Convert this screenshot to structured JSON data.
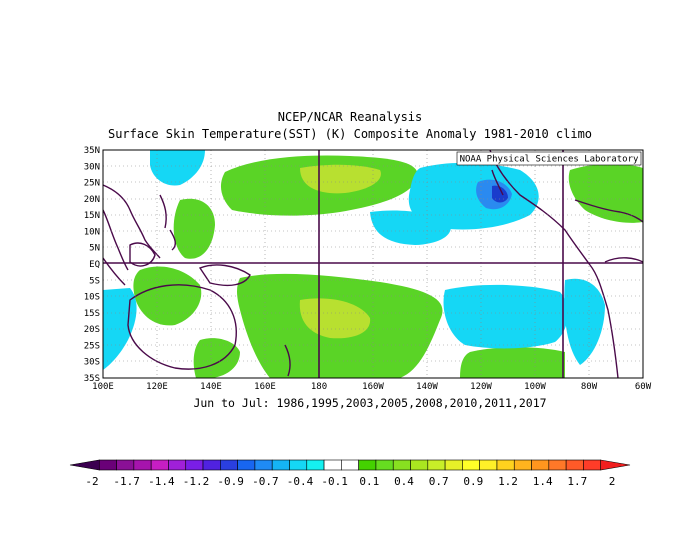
{
  "title_line1": "NCEP/NCAR Reanalysis",
  "title_line2": "Surface Skin Temperature(SST) (K) Composite Anomaly 1981-2010 climo",
  "credit": "NOAA Physical Sciences Laboratory",
  "subtitle": "Jun to Jul: 1986,1995,2003,2005,2008,2010,2011,2017",
  "map": {
    "lon_labels": [
      "100E",
      "120E",
      "140E",
      "160E",
      "180",
      "160W",
      "140W",
      "120W",
      "100W",
      "80W",
      "60W"
    ],
    "lat_labels": [
      "35N",
      "30N",
      "25N",
      "20N",
      "15N",
      "10N",
      "5N",
      "EQ",
      "5S",
      "10S",
      "15S",
      "20S",
      "25S",
      "30S",
      "35S"
    ],
    "lon_range": [
      "100E",
      "60W"
    ],
    "lat_range": [
      "35S",
      "35N"
    ]
  },
  "colorbar": {
    "tick_labels": [
      "-2",
      "-1.7",
      "-1.4",
      "-1.2",
      "-0.9",
      "-0.7",
      "-0.4",
      "-0.1",
      "0.1",
      "0.4",
      "0.7",
      "0.9",
      "1.2",
      "1.4",
      "1.7",
      "2"
    ],
    "colors": [
      "#3b0050",
      "#6a0078",
      "#8a1096",
      "#a614ad",
      "#c71ec3",
      "#a020d9",
      "#7a1ee6",
      "#5022e0",
      "#2a3fe0",
      "#1866f0",
      "#1f8bf5",
      "#15b4f5",
      "#15d7f5",
      "#15f0f0",
      "#ffffff",
      "#ffffff",
      "#44d200",
      "#66dc20",
      "#88e020",
      "#aae620",
      "#c8ee28",
      "#e6f028",
      "#ffff28",
      "#fff028",
      "#ffd21e",
      "#ffb41e",
      "#ff961e",
      "#ff7828",
      "#ff5a28",
      "#ff3c28",
      "#f01e1e"
    ]
  },
  "palette": {
    "blue_dark": "#1a3ccc",
    "blue_mid": "#2a8af0",
    "cyan": "#15d7f5",
    "green": "#5ad426",
    "yellow_green": "#b8e030",
    "coast": "#4a0a4a"
  }
}
